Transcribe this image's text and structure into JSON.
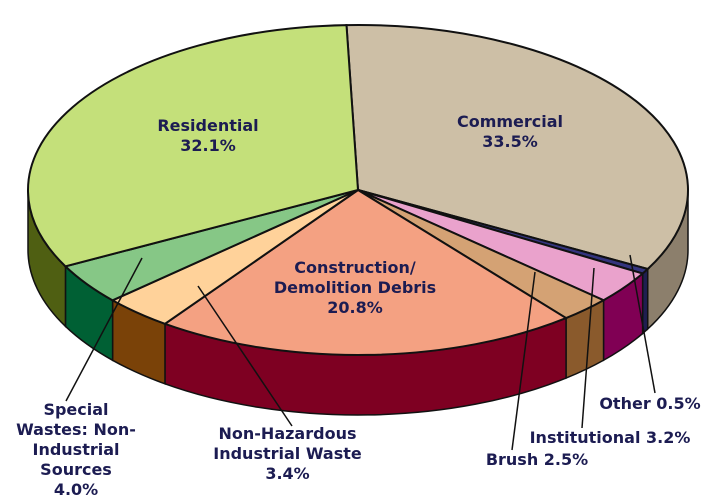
{
  "chart_data": {
    "type": "pie",
    "categories": [
      "Commercial",
      "Other",
      "Institutional",
      "Brush",
      "Construction/ Demolition Debris",
      "Non-Hazardous Industrial Waste",
      "Special Wastes: Non-Industrial Sources",
      "Residential"
    ],
    "values": [
      33.5,
      0.5,
      3.2,
      2.5,
      20.8,
      3.4,
      4.0,
      32.1
    ],
    "value_labels": [
      "33.5%",
      "0.5%",
      "3.2%",
      "2.5%",
      "20.8%",
      "3.4%",
      "4.0%",
      "32.1%"
    ],
    "colors": [
      "#cdbfa6",
      "#34347e",
      "#eaa2cc",
      "#d4a274",
      "#f4a182",
      "#ffd29a",
      "#86c786",
      "#c4e07a"
    ],
    "side_colors": [
      "#8c7f6c",
      "#1e1e50",
      "#800054",
      "#8a5a2c",
      "#7e0022",
      "#7a4208",
      "#006034",
      "#4f5f12"
    ]
  }
}
